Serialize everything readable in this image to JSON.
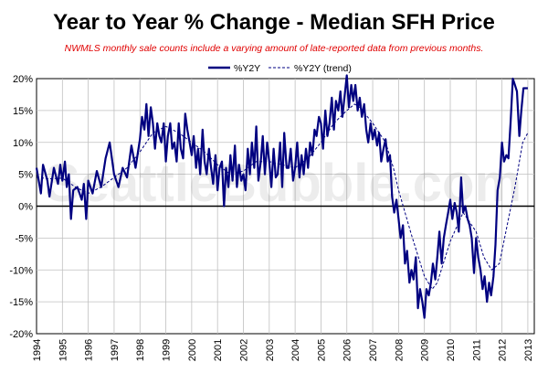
{
  "chart_data": {
    "type": "line",
    "title": "Year to Year % Change - Median SFH Price",
    "subtitle": "NWMLS monthly sale counts include a varying amount of late-reported  data from previous months.",
    "watermark": "SeattleBubble.com",
    "xlabel": "",
    "ylabel": "",
    "xlim": [
      1994.0,
      2013.25
    ],
    "ylim": [
      -20,
      20
    ],
    "x_ticks": [
      "1994",
      "1995",
      "1996",
      "1997",
      "1998",
      "1999",
      "2000",
      "2001",
      "2002",
      "2003",
      "2004",
      "2005",
      "2006",
      "2007",
      "2008",
      "2009",
      "2010",
      "2011",
      "2012",
      "2013"
    ],
    "y_ticks": [
      "20%",
      "15%",
      "10%",
      "5%",
      "0%",
      "-5%",
      "-10%",
      "-15%",
      "-20%"
    ],
    "y_tick_values": [
      20,
      15,
      10,
      5,
      0,
      -5,
      -10,
      -15,
      -20
    ],
    "grid": true,
    "zero_line": true,
    "legend_position": "top",
    "series": [
      {
        "name": "%Y2Y",
        "style": "solid",
        "color": "#000080",
        "points": [
          [
            1994.0,
            6
          ],
          [
            1994.17,
            2
          ],
          [
            1994.25,
            6.5
          ],
          [
            1994.42,
            4
          ],
          [
            1994.5,
            1.5
          ],
          [
            1994.67,
            6
          ],
          [
            1994.83,
            3.5
          ],
          [
            1994.92,
            6.5
          ],
          [
            1995.0,
            4
          ],
          [
            1995.1,
            7
          ],
          [
            1995.17,
            3
          ],
          [
            1995.25,
            5
          ],
          [
            1995.33,
            -2
          ],
          [
            1995.42,
            2.5
          ],
          [
            1995.58,
            3
          ],
          [
            1995.75,
            1
          ],
          [
            1995.83,
            3.5
          ],
          [
            1995.92,
            -2
          ],
          [
            1996.0,
            4
          ],
          [
            1996.17,
            2
          ],
          [
            1996.33,
            5.5
          ],
          [
            1996.5,
            3
          ],
          [
            1996.67,
            7.5
          ],
          [
            1996.83,
            10
          ],
          [
            1997.0,
            5
          ],
          [
            1997.17,
            3
          ],
          [
            1997.33,
            6
          ],
          [
            1997.5,
            4.5
          ],
          [
            1997.67,
            9.5
          ],
          [
            1997.83,
            6
          ],
          [
            1998.0,
            10.5
          ],
          [
            1998.08,
            14
          ],
          [
            1998.17,
            12
          ],
          [
            1998.25,
            16
          ],
          [
            1998.33,
            11
          ],
          [
            1998.42,
            15.5
          ],
          [
            1998.5,
            13
          ],
          [
            1998.58,
            9
          ],
          [
            1998.67,
            13
          ],
          [
            1998.75,
            11
          ],
          [
            1998.83,
            10
          ],
          [
            1998.92,
            13
          ],
          [
            1999.0,
            7
          ],
          [
            1999.08,
            11
          ],
          [
            1999.17,
            13
          ],
          [
            1999.25,
            9
          ],
          [
            1999.33,
            10
          ],
          [
            1999.42,
            7
          ],
          [
            1999.5,
            13
          ],
          [
            1999.58,
            9
          ],
          [
            1999.67,
            7.5
          ],
          [
            1999.75,
            14.5
          ],
          [
            1999.83,
            12
          ],
          [
            1999.92,
            10
          ],
          [
            2000.0,
            8
          ],
          [
            2000.08,
            11
          ],
          [
            2000.17,
            6
          ],
          [
            2000.25,
            9
          ],
          [
            2000.33,
            5
          ],
          [
            2000.42,
            12
          ],
          [
            2000.5,
            7
          ],
          [
            2000.58,
            5
          ],
          [
            2000.67,
            9
          ],
          [
            2000.75,
            6
          ],
          [
            2000.83,
            3.5
          ],
          [
            2000.92,
            8
          ],
          [
            2001.0,
            2.5
          ],
          [
            2001.08,
            6
          ],
          [
            2001.17,
            7
          ],
          [
            2001.25,
            0
          ],
          [
            2001.33,
            6
          ],
          [
            2001.42,
            3
          ],
          [
            2001.5,
            8
          ],
          [
            2001.58,
            4
          ],
          [
            2001.67,
            9.5
          ],
          [
            2001.75,
            3
          ],
          [
            2001.83,
            6.5
          ],
          [
            2001.92,
            4
          ],
          [
            2002.0,
            5
          ],
          [
            2002.08,
            2.5
          ],
          [
            2002.17,
            9
          ],
          [
            2002.25,
            5
          ],
          [
            2002.33,
            10
          ],
          [
            2002.42,
            6
          ],
          [
            2002.5,
            12.5
          ],
          [
            2002.58,
            4
          ],
          [
            2002.67,
            7
          ],
          [
            2002.75,
            11
          ],
          [
            2002.83,
            5
          ],
          [
            2002.92,
            10
          ],
          [
            2003.0,
            7
          ],
          [
            2003.08,
            3
          ],
          [
            2003.17,
            9
          ],
          [
            2003.25,
            4.5
          ],
          [
            2003.33,
            5
          ],
          [
            2003.42,
            10
          ],
          [
            2003.5,
            3
          ],
          [
            2003.58,
            11.5
          ],
          [
            2003.67,
            6
          ],
          [
            2003.75,
            6
          ],
          [
            2003.83,
            9
          ],
          [
            2003.92,
            4
          ],
          [
            2004.0,
            6
          ],
          [
            2004.08,
            10
          ],
          [
            2004.17,
            4.5
          ],
          [
            2004.25,
            8
          ],
          [
            2004.33,
            5
          ],
          [
            2004.42,
            9
          ],
          [
            2004.5,
            6
          ],
          [
            2004.58,
            10
          ],
          [
            2004.67,
            8
          ],
          [
            2004.75,
            12
          ],
          [
            2004.83,
            11
          ],
          [
            2004.92,
            14
          ],
          [
            2005.0,
            13
          ],
          [
            2005.08,
            9
          ],
          [
            2005.17,
            15
          ],
          [
            2005.25,
            11
          ],
          [
            2005.33,
            13
          ],
          [
            2005.42,
            17
          ],
          [
            2005.5,
            12
          ],
          [
            2005.58,
            16.5
          ],
          [
            2005.67,
            15
          ],
          [
            2005.75,
            18
          ],
          [
            2005.83,
            14
          ],
          [
            2005.92,
            17.5
          ],
          [
            2006.0,
            20.5
          ],
          [
            2006.08,
            15.5
          ],
          [
            2006.17,
            19
          ],
          [
            2006.25,
            16.5
          ],
          [
            2006.33,
            19
          ],
          [
            2006.42,
            15
          ],
          [
            2006.5,
            17
          ],
          [
            2006.58,
            14
          ],
          [
            2006.67,
            16
          ],
          [
            2006.75,
            12
          ],
          [
            2006.83,
            10
          ],
          [
            2006.92,
            13
          ],
          [
            2007.0,
            10.5
          ],
          [
            2007.08,
            12
          ],
          [
            2007.17,
            9.5
          ],
          [
            2007.25,
            11.5
          ],
          [
            2007.33,
            7
          ],
          [
            2007.42,
            9
          ],
          [
            2007.5,
            10.5
          ],
          [
            2007.58,
            7
          ],
          [
            2007.67,
            8
          ],
          [
            2007.75,
            1.5
          ],
          [
            2007.83,
            -1
          ],
          [
            2007.92,
            1
          ],
          [
            2008.0,
            -2
          ],
          [
            2008.08,
            -5
          ],
          [
            2008.17,
            -3
          ],
          [
            2008.25,
            -9
          ],
          [
            2008.33,
            -7
          ],
          [
            2008.42,
            -12
          ],
          [
            2008.5,
            -10
          ],
          [
            2008.58,
            -11.5
          ],
          [
            2008.67,
            -8
          ],
          [
            2008.75,
            -16
          ],
          [
            2008.83,
            -13
          ],
          [
            2008.92,
            -15
          ],
          [
            2009.0,
            -17.5
          ],
          [
            2009.08,
            -13
          ],
          [
            2009.17,
            -14
          ],
          [
            2009.25,
            -12
          ],
          [
            2009.33,
            -9
          ],
          [
            2009.42,
            -11.5
          ],
          [
            2009.5,
            -8
          ],
          [
            2009.58,
            -4
          ],
          [
            2009.67,
            -9
          ],
          [
            2009.75,
            -5
          ],
          [
            2009.83,
            -3
          ],
          [
            2009.92,
            -1
          ],
          [
            2010.0,
            1
          ],
          [
            2010.08,
            -2
          ],
          [
            2010.17,
            0.5
          ],
          [
            2010.25,
            -1
          ],
          [
            2010.33,
            -4
          ],
          [
            2010.42,
            4.5
          ],
          [
            2010.5,
            -1
          ],
          [
            2010.58,
            0
          ],
          [
            2010.67,
            -2
          ],
          [
            2010.75,
            -3
          ],
          [
            2010.83,
            -5
          ],
          [
            2010.92,
            -10.5
          ],
          [
            2011.0,
            -5
          ],
          [
            2011.08,
            -8
          ],
          [
            2011.17,
            -10
          ],
          [
            2011.25,
            -13
          ],
          [
            2011.33,
            -11
          ],
          [
            2011.42,
            -15
          ],
          [
            2011.5,
            -12
          ],
          [
            2011.58,
            -14
          ],
          [
            2011.67,
            -11
          ],
          [
            2011.75,
            -6
          ],
          [
            2011.83,
            2.5
          ],
          [
            2011.92,
            4.5
          ],
          [
            2012.0,
            10
          ],
          [
            2012.08,
            7
          ],
          [
            2012.17,
            8
          ],
          [
            2012.25,
            7.5
          ],
          [
            2012.33,
            13
          ],
          [
            2012.42,
            20
          ],
          [
            2012.5,
            19
          ],
          [
            2012.58,
            18
          ],
          [
            2012.67,
            11
          ],
          [
            2012.75,
            15
          ],
          [
            2012.83,
            18.5
          ],
          [
            2013.0,
            18.5
          ]
        ]
      },
      {
        "name": "%Y2Y (trend)",
        "style": "dashed",
        "color": "#000080",
        "points": [
          [
            1994.0,
            4.5
          ],
          [
            1994.5,
            4.3
          ],
          [
            1995.0,
            4.4
          ],
          [
            1995.5,
            3
          ],
          [
            1996.0,
            2
          ],
          [
            1996.5,
            3
          ],
          [
            1997.0,
            4.5
          ],
          [
            1997.5,
            6
          ],
          [
            1998.0,
            8.5
          ],
          [
            1998.5,
            11.5
          ],
          [
            1999.0,
            12.5
          ],
          [
            1999.5,
            11.5
          ],
          [
            2000.0,
            10
          ],
          [
            2000.5,
            8.5
          ],
          [
            2001.0,
            6.5
          ],
          [
            2001.5,
            5
          ],
          [
            2002.0,
            5.5
          ],
          [
            2002.5,
            7
          ],
          [
            2003.0,
            7
          ],
          [
            2003.5,
            6.5
          ],
          [
            2004.0,
            6
          ],
          [
            2004.5,
            7.5
          ],
          [
            2005.0,
            10
          ],
          [
            2005.5,
            13
          ],
          [
            2006.0,
            15
          ],
          [
            2006.3,
            16
          ],
          [
            2006.5,
            15.5
          ],
          [
            2007.0,
            13
          ],
          [
            2007.5,
            10
          ],
          [
            2007.8,
            6
          ],
          [
            2008.0,
            2.5
          ],
          [
            2008.5,
            -4.5
          ],
          [
            2009.0,
            -11
          ],
          [
            2009.3,
            -13
          ],
          [
            2009.5,
            -12
          ],
          [
            2010.0,
            -5.5
          ],
          [
            2010.5,
            -1
          ],
          [
            2011.0,
            -4
          ],
          [
            2011.3,
            -8
          ],
          [
            2011.6,
            -10
          ],
          [
            2011.9,
            -9
          ],
          [
            2012.2,
            -3
          ],
          [
            2012.5,
            3
          ],
          [
            2012.8,
            10
          ],
          [
            2013.0,
            11.5
          ]
        ]
      }
    ]
  }
}
